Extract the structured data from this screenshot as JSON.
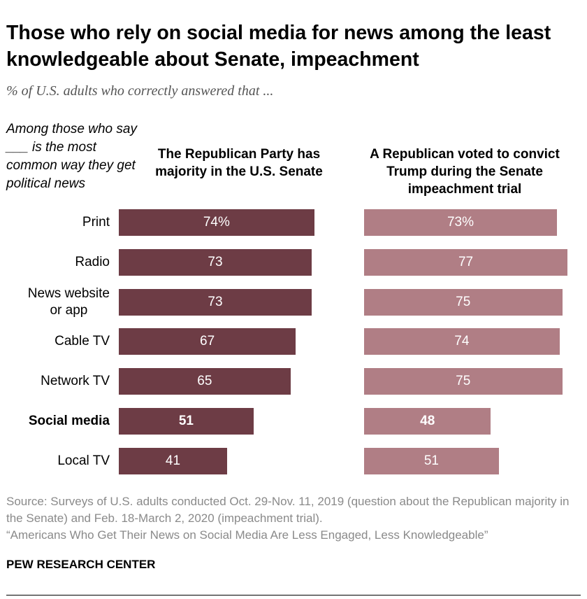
{
  "title": "Those who rely on social media for news among the least knowledgeable about Senate, impeachment",
  "subtitle": "% of U.S. adults who correctly answered that ...",
  "chart_data": {
    "type": "bar",
    "orientation": "horizontal",
    "row_header": "Among those who say ___ is the most common way they get political news",
    "categories": [
      "Print",
      "Radio",
      "News website or app",
      "Cable TV",
      "Network TV",
      "Social media",
      "Local TV"
    ],
    "highlight_category": "Social media",
    "series": [
      {
        "name": "The Republican Party has majority in the U.S. Senate",
        "values": [
          74,
          73,
          73,
          67,
          65,
          51,
          41
        ],
        "color": "#6d3c45"
      },
      {
        "name": "A Republican voted to convict Trump during the Senate impeachment trial",
        "values": [
          73,
          77,
          75,
          74,
          75,
          48,
          51
        ],
        "color": "#b07e85"
      }
    ],
    "value_suffix_first_row": "%",
    "grid": false,
    "xlim": [
      0,
      100
    ]
  },
  "source": "Source: Surveys of U.S. adults conducted Oct. 29-Nov. 11, 2019 (question about the Republican majority in the Senate) and Feb. 18-March 2, 2020 (impeachment trial).",
  "report": "“Americans Who Get Their News on Social Media Are Less Engaged, Less Knowledgeable”",
  "brand": "PEW RESEARCH CENTER"
}
